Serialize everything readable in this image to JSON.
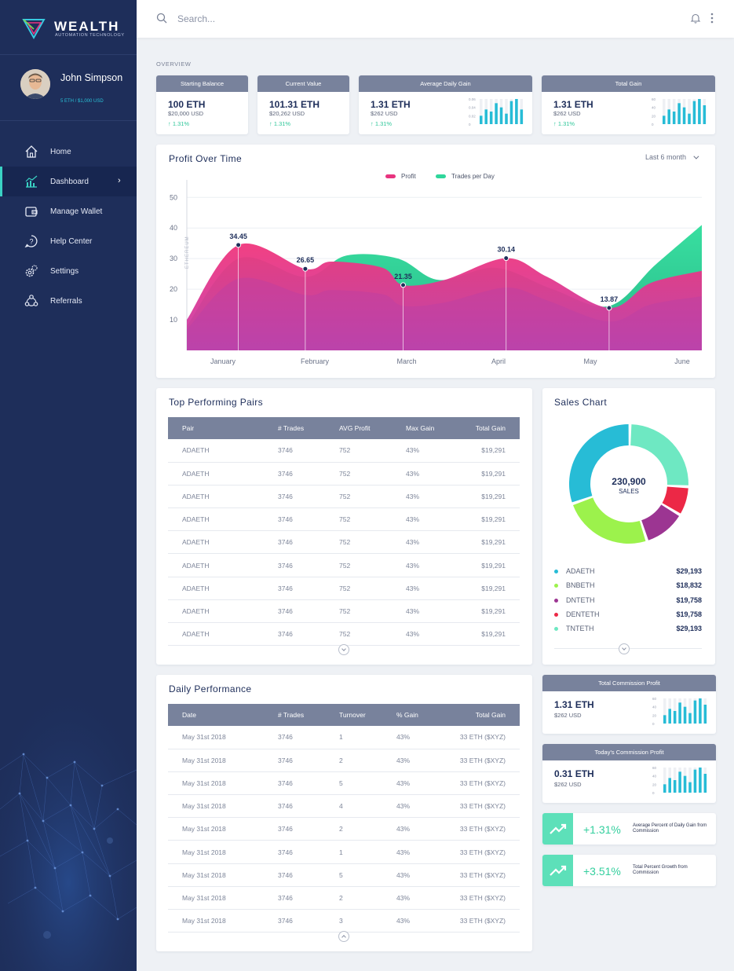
{
  "brand": {
    "name": "WEALTH",
    "tagline": "AUTOMATION TECHNOLOGY"
  },
  "user": {
    "name": "John Simpson",
    "balance": "5 ETH  /  $1,000 USD"
  },
  "nav": [
    {
      "label": "Home",
      "icon": "home-icon"
    },
    {
      "label": "Dashboard",
      "icon": "bar-chart-icon",
      "active": true
    },
    {
      "label": "Manage Wallet",
      "icon": "wallet-icon"
    },
    {
      "label": "Help Center",
      "icon": "question-icon"
    },
    {
      "label": "Settings",
      "icon": "gear-icon"
    },
    {
      "label": "Referrals",
      "icon": "referrals-icon"
    }
  ],
  "topbar": {
    "search_placeholder": "Search..."
  },
  "overview_label": "OVERVIEW",
  "stats": [
    {
      "title": "Starting Balance",
      "eth": "100 ETH",
      "usd": "$20,000 USD",
      "change": "↑ 1.31%"
    },
    {
      "title": "Current Value",
      "eth": "101.31 ETH",
      "usd": "$20,262 USD",
      "change": "↑ 1.31%"
    },
    {
      "title": "Average Daily Gain",
      "eth": "1.31 ETH",
      "usd": "$262 USD",
      "change": "↑ 1.31%",
      "mini_ticks": [
        "0.06",
        "0.04",
        "0.02",
        "0"
      ],
      "mini_values": [
        0.02,
        0.035,
        0.03,
        0.05,
        0.04,
        0.025,
        0.055,
        0.06,
        0.035
      ]
    },
    {
      "title": "Total Gain",
      "eth": "1.31 ETH",
      "usd": "$262 USD",
      "change": "↑ 1.31%",
      "mini_ticks": [
        "60",
        "40",
        "20",
        "0"
      ],
      "mini_values": [
        20,
        35,
        30,
        50,
        40,
        25,
        55,
        60,
        45
      ]
    }
  ],
  "profit_chart": {
    "title": "Profit Over Time",
    "period": "Last 6 month",
    "legend": [
      "Profit",
      "Trades per Day"
    ],
    "ylabel": "ETHEREUM",
    "chart_data": {
      "type": "area",
      "categories": [
        "January",
        "February",
        "March",
        "April",
        "May",
        "June"
      ],
      "yticks": [
        10,
        20,
        30,
        40,
        50
      ],
      "ylim": [
        0,
        57
      ],
      "series": [
        {
          "name": "Profit",
          "color": "#e8347f",
          "points": [
            [
              0,
              10
            ],
            [
              0.5,
              34.45
            ],
            [
              1.15,
              26.65
            ],
            [
              1.4,
              29
            ],
            [
              1.9,
              27
            ],
            [
              2.1,
              21.35
            ],
            [
              2.5,
              23
            ],
            [
              3.1,
              30.14
            ],
            [
              3.5,
              24
            ],
            [
              4.1,
              13.87
            ],
            [
              4.5,
              22
            ],
            [
              5,
              26
            ]
          ]
        },
        {
          "name": "Trades per Day",
          "color": "#2fd69b",
          "points": [
            [
              0,
              8
            ],
            [
              0.5,
              30
            ],
            [
              1.15,
              24
            ],
            [
              1.55,
              31
            ],
            [
              2.05,
              30
            ],
            [
              2.45,
              23
            ],
            [
              3.0,
              27
            ],
            [
              3.55,
              20
            ],
            [
              4.1,
              14.5
            ],
            [
              4.55,
              28
            ],
            [
              5,
              41
            ]
          ]
        }
      ],
      "annotations": [
        {
          "label": "34.45",
          "x": 0.5,
          "y": 34.45
        },
        {
          "label": "26.65",
          "x": 1.15,
          "y": 26.65
        },
        {
          "label": "21.35",
          "x": 2.1,
          "y": 21.35
        },
        {
          "label": "30.14",
          "x": 3.1,
          "y": 30.14
        },
        {
          "label": "13.87",
          "x": 4.1,
          "y": 13.87
        }
      ]
    }
  },
  "pairs": {
    "title": "Top Performing Pairs",
    "headers": [
      "Pair",
      "# Trades",
      "AVG Profit",
      "Max Gain",
      "Total Gain"
    ],
    "rows": [
      [
        "ADAETH",
        "3746",
        "752",
        "43%",
        "$19,291"
      ],
      [
        "ADAETH",
        "3746",
        "752",
        "43%",
        "$19,291"
      ],
      [
        "ADAETH",
        "3746",
        "752",
        "43%",
        "$19,291"
      ],
      [
        "ADAETH",
        "3746",
        "752",
        "43%",
        "$19,291"
      ],
      [
        "ADAETH",
        "3746",
        "752",
        "43%",
        "$19,291"
      ],
      [
        "ADAETH",
        "3746",
        "752",
        "43%",
        "$19,291"
      ],
      [
        "ADAETH",
        "3746",
        "752",
        "43%",
        "$19,291"
      ],
      [
        "ADAETH",
        "3746",
        "752",
        "43%",
        "$19,291"
      ],
      [
        "ADAETH",
        "3746",
        "752",
        "43%",
        "$19,291"
      ]
    ]
  },
  "sales": {
    "title": "Sales Chart",
    "center_value": "230,900",
    "center_label": "SALES",
    "chart_data": {
      "type": "pie",
      "values": [
        29,
        9,
        13,
        28,
        35
      ],
      "colors": [
        "#6ee8c2",
        "#ec2846",
        "#9c3592",
        "#9cf24c",
        "#27bcd6"
      ]
    },
    "legend": [
      {
        "name": "ADAETH",
        "value": "$29,193",
        "color": "#27bcd6"
      },
      {
        "name": "BNBETH",
        "value": "$18,832",
        "color": "#9cf24c"
      },
      {
        "name": "DNTETH",
        "value": "$19,758",
        "color": "#9c3592"
      },
      {
        "name": "DENTETH",
        "value": "$19,758",
        "color": "#ec2846"
      },
      {
        "name": "TNTETH",
        "value": "$29,193",
        "color": "#6ee8c2"
      }
    ]
  },
  "daily": {
    "title": "Daily Performance",
    "headers": [
      "Date",
      "# Trades",
      "Turnover",
      "% Gain",
      "Total Gain"
    ],
    "rows": [
      [
        "May 31st 2018",
        "3746",
        "1",
        "43%",
        "33 ETH ($XYZ)"
      ],
      [
        "May 31st 2018",
        "3746",
        "2",
        "43%",
        "33 ETH ($XYZ)"
      ],
      [
        "May 31st 2018",
        "3746",
        "5",
        "43%",
        "33 ETH ($XYZ)"
      ],
      [
        "May 31st 2018",
        "3746",
        "4",
        "43%",
        "33 ETH ($XYZ)"
      ],
      [
        "May 31st 2018",
        "3746",
        "2",
        "43%",
        "33 ETH ($XYZ)"
      ],
      [
        "May 31st 2018",
        "3746",
        "1",
        "43%",
        "33 ETH ($XYZ)"
      ],
      [
        "May 31st 2018",
        "3746",
        "5",
        "43%",
        "33 ETH ($XYZ)"
      ],
      [
        "May 31st 2018",
        "3746",
        "2",
        "43%",
        "33 ETH ($XYZ)"
      ],
      [
        "May 31st 2018",
        "3746",
        "3",
        "43%",
        "33 ETH ($XYZ)"
      ]
    ]
  },
  "commission": [
    {
      "title": "Total Commission Profit",
      "eth": "1.31 ETH",
      "usd": "$262 USD",
      "mini_ticks": [
        "60",
        "40",
        "20",
        "0"
      ],
      "mini_values": [
        20,
        35,
        30,
        50,
        40,
        25,
        55,
        60,
        45
      ]
    },
    {
      "title": "Today's Commission Profit",
      "eth": "0.31 ETH",
      "usd": "$262 USD",
      "mini_ticks": [
        "60",
        "40",
        "20",
        "0"
      ],
      "mini_values": [
        20,
        35,
        30,
        50,
        40,
        25,
        55,
        60,
        45
      ]
    }
  ],
  "growth": [
    {
      "pct": "+1.31%",
      "text": "Average Percent of Daily Gain from Commission"
    },
    {
      "pct": "+3.51%",
      "text": "Total Percent Growth from Commission"
    }
  ],
  "colors": {
    "sidebar": "#1e2e5a",
    "accent": "#3ad2c4",
    "header": "#78829c",
    "bar": "#27bcd6",
    "profit": "#e8347f",
    "trades": "#2fd69b"
  }
}
